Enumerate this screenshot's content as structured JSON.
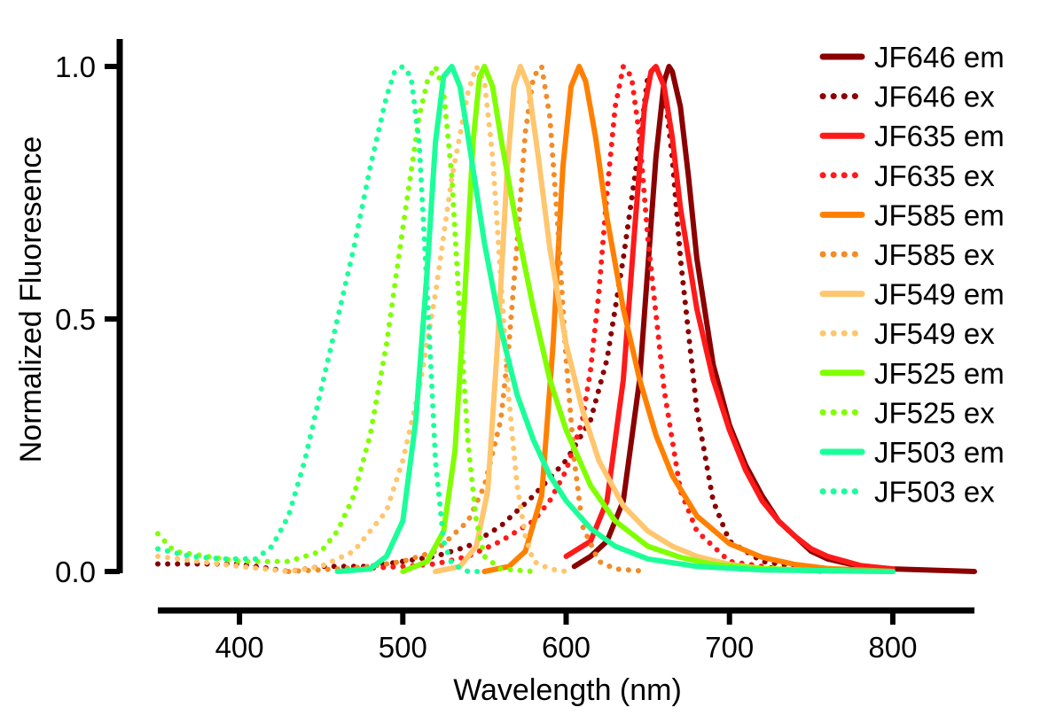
{
  "chart_data": {
    "type": "line",
    "title": "",
    "xlabel": "Wavelength (nm)",
    "ylabel": "Normalized Fluoresence",
    "xlim": [
      350,
      850
    ],
    "ylim": [
      0,
      1
    ],
    "x_ticks": [
      400,
      500,
      600,
      700,
      800
    ],
    "x_tick_labels": [
      "400",
      "500",
      "600",
      "700",
      "800"
    ],
    "y_ticks": [
      0,
      0.5,
      1
    ],
    "y_tick_labels": [
      "0.0",
      "0.5",
      "1.0"
    ],
    "grid": false,
    "legend_position": "top-right",
    "series": [
      {
        "name": "JF646 em",
        "style": "solid",
        "color": "#8B0000",
        "x": [
          605,
          615,
          625,
          635,
          645,
          650,
          655,
          660,
          663,
          665,
          670,
          675,
          680,
          690,
          700,
          710,
          720,
          730,
          740,
          750,
          760,
          780,
          800,
          850
        ],
        "y": [
          0.01,
          0.03,
          0.06,
          0.14,
          0.38,
          0.6,
          0.82,
          0.97,
          1.0,
          0.99,
          0.92,
          0.78,
          0.62,
          0.41,
          0.29,
          0.21,
          0.15,
          0.1,
          0.07,
          0.04,
          0.025,
          0.01,
          0.005,
          0.0
        ]
      },
      {
        "name": "JF646 ex",
        "style": "dotted",
        "color": "#8B0000",
        "x": [
          350,
          400,
          430,
          450,
          480,
          500,
          520,
          540,
          560,
          580,
          600,
          615,
          625,
          635,
          645,
          650,
          655,
          660,
          665,
          670,
          680,
          690,
          700,
          720,
          750,
          780
        ],
        "y": [
          0.015,
          0.015,
          0.0,
          0.01,
          0.01,
          0.02,
          0.03,
          0.05,
          0.09,
          0.15,
          0.22,
          0.3,
          0.42,
          0.62,
          0.85,
          0.98,
          1.0,
          0.96,
          0.82,
          0.62,
          0.32,
          0.14,
          0.06,
          0.02,
          0.005,
          0.0
        ]
      },
      {
        "name": "JF635 em",
        "style": "solid",
        "color": "#FF1A1A",
        "x": [
          600,
          615,
          625,
          635,
          642,
          648,
          652,
          655,
          660,
          665,
          670,
          680,
          690,
          700,
          710,
          720,
          730,
          740,
          750,
          760,
          780,
          800
        ],
        "y": [
          0.03,
          0.06,
          0.14,
          0.38,
          0.68,
          0.92,
          0.99,
          1.0,
          0.96,
          0.86,
          0.72,
          0.52,
          0.38,
          0.28,
          0.2,
          0.14,
          0.1,
          0.07,
          0.045,
          0.03,
          0.012,
          0.005
        ]
      },
      {
        "name": "JF635 ex",
        "style": "dotted",
        "color": "#FF1A1A",
        "x": [
          470,
          500,
          520,
          540,
          560,
          580,
          590,
          600,
          610,
          615,
          620,
          625,
          630,
          635,
          640,
          645,
          650,
          660,
          670,
          680,
          700,
          730,
          760
        ],
        "y": [
          0.005,
          0.01,
          0.015,
          0.03,
          0.06,
          0.1,
          0.14,
          0.2,
          0.3,
          0.4,
          0.55,
          0.75,
          0.92,
          1.0,
          0.98,
          0.86,
          0.66,
          0.36,
          0.16,
          0.08,
          0.02,
          0.005,
          0.0
        ]
      },
      {
        "name": "JF585 em",
        "style": "solid",
        "color": "#FF8000",
        "x": [
          550,
          565,
          575,
          585,
          592,
          598,
          603,
          608,
          612,
          618,
          625,
          635,
          645,
          655,
          665,
          680,
          700,
          720,
          740,
          760,
          780,
          800
        ],
        "y": [
          0.0,
          0.01,
          0.04,
          0.15,
          0.45,
          0.8,
          0.96,
          1.0,
          0.97,
          0.86,
          0.7,
          0.52,
          0.38,
          0.27,
          0.19,
          0.11,
          0.055,
          0.028,
          0.014,
          0.006,
          0.003,
          0.0
        ]
      },
      {
        "name": "JF585 ex",
        "style": "dotted",
        "color": "#F28C28",
        "x": [
          430,
          460,
          480,
          500,
          520,
          540,
          550,
          560,
          565,
          570,
          575,
          580,
          585,
          590,
          595,
          600,
          605,
          610,
          620,
          630,
          650
        ],
        "y": [
          0.0,
          0.005,
          0.01,
          0.02,
          0.04,
          0.1,
          0.17,
          0.3,
          0.45,
          0.65,
          0.87,
          0.98,
          1.0,
          0.9,
          0.68,
          0.42,
          0.22,
          0.09,
          0.02,
          0.005,
          0.0
        ]
      },
      {
        "name": "JF549 em",
        "style": "solid",
        "color": "#FFC66E",
        "x": [
          520,
          535,
          545,
          552,
          558,
          564,
          568,
          572,
          577,
          583,
          590,
          600,
          610,
          620,
          635,
          650,
          665,
          680,
          700,
          720,
          750,
          800
        ],
        "y": [
          0.0,
          0.01,
          0.05,
          0.16,
          0.45,
          0.8,
          0.96,
          1.0,
          0.96,
          0.82,
          0.64,
          0.45,
          0.32,
          0.22,
          0.13,
          0.08,
          0.05,
          0.03,
          0.014,
          0.006,
          0.002,
          0.0
        ]
      },
      {
        "name": "JF549 ex",
        "style": "dotted",
        "color": "#FFC66E",
        "x": [
          350,
          400,
          430,
          450,
          470,
          490,
          500,
          510,
          520,
          530,
          540,
          545,
          550,
          555,
          560,
          565,
          570,
          575,
          580,
          590,
          600
        ],
        "y": [
          0.03,
          0.01,
          0.0,
          0.01,
          0.04,
          0.12,
          0.22,
          0.36,
          0.55,
          0.78,
          0.95,
          1.0,
          0.97,
          0.82,
          0.58,
          0.34,
          0.17,
          0.07,
          0.02,
          0.005,
          0.0
        ]
      },
      {
        "name": "JF525 em",
        "style": "solid",
        "color": "#80FF00",
        "x": [
          500,
          515,
          525,
          532,
          538,
          543,
          547,
          550,
          555,
          560,
          570,
          580,
          590,
          600,
          615,
          630,
          650,
          670,
          690,
          720,
          750,
          800
        ],
        "y": [
          0.0,
          0.02,
          0.08,
          0.24,
          0.55,
          0.85,
          0.98,
          1.0,
          0.96,
          0.86,
          0.68,
          0.52,
          0.38,
          0.28,
          0.17,
          0.1,
          0.05,
          0.028,
          0.014,
          0.006,
          0.002,
          0.0
        ]
      },
      {
        "name": "JF525 ex",
        "style": "dotted",
        "color": "#80FF00",
        "x": [
          350,
          360,
          380,
          400,
          430,
          450,
          460,
          470,
          480,
          490,
          500,
          510,
          515,
          520,
          525,
          530,
          535,
          540,
          545,
          550,
          560,
          580
        ],
        "y": [
          0.075,
          0.04,
          0.03,
          0.02,
          0.02,
          0.04,
          0.08,
          0.15,
          0.27,
          0.45,
          0.68,
          0.9,
          0.97,
          1.0,
          0.95,
          0.78,
          0.5,
          0.25,
          0.1,
          0.03,
          0.005,
          0.0
        ]
      },
      {
        "name": "JF503 em",
        "style": "solid",
        "color": "#1AFF99",
        "x": [
          460,
          480,
          490,
          500,
          508,
          515,
          520,
          525,
          530,
          535,
          540,
          550,
          560,
          570,
          580,
          590,
          600,
          615,
          630,
          650,
          680,
          720,
          800
        ],
        "y": [
          0.0,
          0.005,
          0.03,
          0.1,
          0.3,
          0.6,
          0.85,
          0.98,
          1.0,
          0.96,
          0.86,
          0.65,
          0.48,
          0.35,
          0.26,
          0.19,
          0.14,
          0.085,
          0.05,
          0.025,
          0.01,
          0.003,
          0.0
        ]
      },
      {
        "name": "JF503 ex",
        "style": "dotted",
        "color": "#1AFF99",
        "x": [
          350,
          370,
          390,
          410,
          420,
          430,
          440,
          450,
          460,
          470,
          480,
          490,
          495,
          500,
          505,
          510,
          515,
          520,
          525,
          530,
          540,
          550
        ],
        "y": [
          0.045,
          0.03,
          0.025,
          0.025,
          0.05,
          0.11,
          0.22,
          0.36,
          0.5,
          0.64,
          0.8,
          0.94,
          0.99,
          1.0,
          0.98,
          0.85,
          0.55,
          0.22,
          0.06,
          0.015,
          0.0,
          0.0
        ]
      }
    ]
  }
}
